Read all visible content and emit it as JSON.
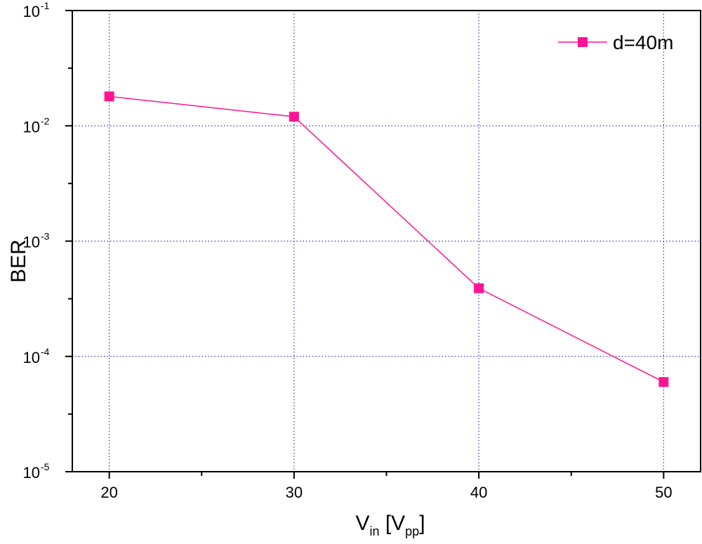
{
  "chart_data": {
    "type": "line",
    "xlabel": {
      "main": "V",
      "sub": "in",
      "bracket_open": " [V",
      "bracket_sub": "pp",
      "bracket_close": "]"
    },
    "ylabel": "BER",
    "x_scale": "linear",
    "y_scale": "log",
    "xlim": [
      18,
      52
    ],
    "ylim": [
      1e-05,
      0.1
    ],
    "x_ticks": [
      20,
      30,
      40,
      50
    ],
    "x_tick_labels": [
      "20",
      "30",
      "40",
      "50"
    ],
    "y_ticks": [
      1e-05,
      0.0001,
      0.001,
      0.01,
      0.1
    ],
    "y_tick_labels": [
      {
        "base": "10",
        "exp": "-5"
      },
      {
        "base": "10",
        "exp": "-4"
      },
      {
        "base": "10",
        "exp": "-3"
      },
      {
        "base": "10",
        "exp": "-2"
      },
      {
        "base": "10",
        "exp": "-1"
      }
    ],
    "grid": true,
    "legend_position": "top-right",
    "series": [
      {
        "name": "d=40m",
        "color": "#ff1493",
        "marker": "square",
        "x": [
          20,
          30,
          40,
          50
        ],
        "y": [
          0.018,
          0.012,
          0.00039,
          6e-05
        ]
      }
    ]
  }
}
